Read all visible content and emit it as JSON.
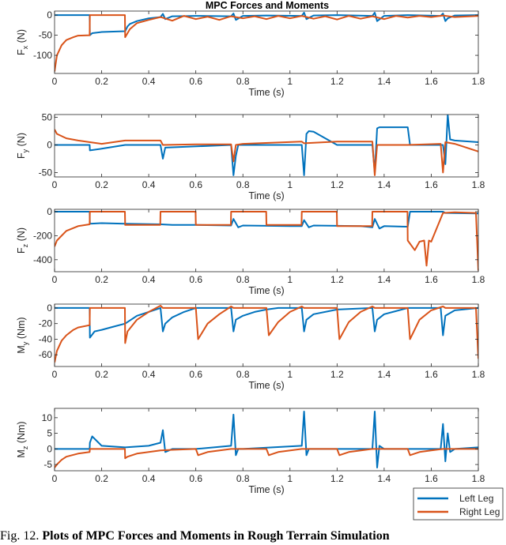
{
  "figure": {
    "title": "MPC Forces and Moments",
    "caption_prefix": "Fig. 12.",
    "caption_bold": "Plots of MPC Forces and Moments in Rough Terrain Simulation"
  },
  "colors": {
    "left_leg": "#0072BD",
    "right_leg": "#D95319"
  },
  "legend": {
    "placement": "bottom-right",
    "entries": [
      "Left Leg",
      "Right Leg"
    ]
  },
  "chart_data": [
    {
      "type": "line",
      "ylabel_main": "F",
      "ylabel_sub": "x",
      "ylabel_unit": " (N)",
      "xlabel": "Time (s)",
      "xlim": [
        0,
        1.8
      ],
      "ylim": [
        -145,
        10
      ],
      "xticks": [
        0,
        0.2,
        0.4,
        0.6,
        0.8,
        1,
        1.2,
        1.4,
        1.6,
        1.8
      ],
      "xtick_labels": [
        "0",
        "0.2",
        "0.4",
        "0.6",
        "0.8",
        "1",
        "1.2",
        "1.4",
        "1.6",
        "1.8"
      ],
      "yticks": [
        -100,
        -50,
        0
      ],
      "ytick_labels": [
        "-100",
        "-50",
        "0"
      ],
      "series": [
        {
          "name": "Left Leg",
          "x": [
            0,
            0.149,
            0.15,
            0.16,
            0.2,
            0.25,
            0.3,
            0.31,
            0.32,
            0.35,
            0.4,
            0.45,
            0.46,
            0.47,
            0.5,
            0.6,
            0.75,
            0.76,
            0.77,
            0.8,
            0.9,
            1.05,
            1.06,
            1.07,
            1.1,
            1.2,
            1.35,
            1.36,
            1.37,
            1.4,
            1.5,
            1.64,
            1.65,
            1.66,
            1.67,
            1.7,
            1.8
          ],
          "y": [
            0,
            0,
            -50,
            -45,
            -42,
            -41,
            -40,
            -28,
            -22,
            -15,
            -8,
            -5,
            3,
            -10,
            -3,
            -2,
            -3,
            4,
            -12,
            -2,
            -1,
            -2,
            6,
            -10,
            -1,
            0,
            -2,
            6,
            -15,
            -2,
            0,
            -2,
            4,
            -15,
            -8,
            -1,
            0
          ]
        },
        {
          "name": "Right Leg",
          "x": [
            0,
            0.01,
            0.03,
            0.05,
            0.08,
            0.1,
            0.149,
            0.15,
            0.299,
            0.3,
            0.32,
            0.35,
            0.4,
            0.45,
            0.5,
            0.55,
            0.6,
            0.65,
            0.7,
            0.75,
            0.8,
            0.85,
            0.9,
            0.95,
            1,
            1.05,
            1.1,
            1.15,
            1.2,
            1.25,
            1.3,
            1.35,
            1.4,
            1.45,
            1.5,
            1.55,
            1.6,
            1.65,
            1.7,
            1.8
          ],
          "y": [
            -140,
            -100,
            -75,
            -62,
            -55,
            -51,
            -50,
            0,
            0,
            -55,
            -35,
            -20,
            -12,
            -5,
            -14,
            -2,
            -10,
            -4,
            -12,
            -3,
            -8,
            -3,
            -10,
            -2,
            -8,
            -2,
            -9,
            -3,
            -11,
            -2,
            -9,
            -3,
            -10,
            -2,
            -6,
            -2,
            -5,
            -1,
            -5,
            -2
          ]
        }
      ]
    },
    {
      "type": "line",
      "ylabel_main": "F",
      "ylabel_sub": "y",
      "ylabel_unit": " (N)",
      "xlabel": "Time (s)",
      "xlim": [
        0,
        1.8
      ],
      "ylim": [
        -58,
        55
      ],
      "xticks": [
        0,
        0.2,
        0.4,
        0.6,
        0.8,
        1,
        1.2,
        1.4,
        1.6,
        1.8
      ],
      "xtick_labels": [
        "0",
        "0.2",
        "0.4",
        "0.6",
        "0.8",
        "1",
        "1.2",
        "1.4",
        "1.6",
        "1.8"
      ],
      "yticks": [
        -50,
        0,
        50
      ],
      "ytick_labels": [
        "-50",
        "0",
        "50"
      ],
      "series": [
        {
          "name": "Left Leg",
          "x": [
            0,
            0.149,
            0.15,
            0.2,
            0.3,
            0.45,
            0.46,
            0.47,
            0.75,
            0.76,
            0.77,
            0.78,
            1.05,
            1.06,
            1.07,
            1.08,
            1.1,
            1.2,
            1.35,
            1.36,
            1.37,
            1.38,
            1.5,
            1.51,
            1.65,
            1.66,
            1.67,
            1.68,
            1.7,
            1.8
          ],
          "y": [
            0,
            0,
            -10,
            -7,
            0,
            0,
            -25,
            -5,
            0,
            -55,
            -20,
            0,
            0,
            -55,
            20,
            25,
            24,
            0,
            0,
            -50,
            30,
            32,
            32,
            0,
            0,
            -35,
            55,
            10,
            8,
            5
          ]
        },
        {
          "name": "Right Leg",
          "x": [
            0,
            0.01,
            0.05,
            0.1,
            0.15,
            0.2,
            0.3,
            0.45,
            0.46,
            0.6,
            0.75,
            0.76,
            0.77,
            0.8,
            1.05,
            1.06,
            1.2,
            1.35,
            1.36,
            1.37,
            1.5,
            1.64,
            1.65,
            1.66,
            1.7,
            1.8
          ],
          "y": [
            28,
            20,
            12,
            8,
            5,
            2,
            8,
            8,
            0,
            1,
            1,
            -30,
            0,
            2,
            6,
            3,
            6,
            6,
            -55,
            0,
            0,
            2,
            -50,
            5,
            2,
            -12
          ]
        }
      ]
    },
    {
      "type": "line",
      "ylabel_main": "F",
      "ylabel_sub": "z",
      "ylabel_unit": " (N)",
      "xlabel": "Time (s)",
      "xlim": [
        0,
        1.8
      ],
      "ylim": [
        -500,
        20
      ],
      "xticks": [
        0,
        0.2,
        0.4,
        0.6,
        0.8,
        1,
        1.2,
        1.4,
        1.6,
        1.8
      ],
      "xtick_labels": [
        "0",
        "0.2",
        "0.4",
        "0.6",
        "0.8",
        "1",
        "1.2",
        "1.4",
        "1.6",
        "1.8"
      ],
      "yticks": [
        -400,
        -200,
        0
      ],
      "ytick_labels": [
        "-400",
        "-200",
        "0"
      ],
      "series": [
        {
          "name": "Left Leg",
          "x": [
            0,
            0.149,
            0.15,
            0.2,
            0.3,
            0.45,
            0.5,
            0.6,
            0.75,
            0.76,
            0.78,
            0.8,
            1,
            1.05,
            1.06,
            1.08,
            1.1,
            1.3,
            1.35,
            1.36,
            1.38,
            1.4,
            1.5,
            1.51,
            1.65,
            1.66,
            1.8
          ],
          "y": [
            0,
            0,
            -100,
            -95,
            -100,
            -105,
            -110,
            -110,
            -115,
            -60,
            -130,
            -115,
            -120,
            -120,
            -70,
            -130,
            -115,
            -120,
            -130,
            -60,
            -140,
            -120,
            -125,
            0,
            0,
            -10,
            -15
          ]
        },
        {
          "name": "Right Leg",
          "x": [
            0,
            0.01,
            0.05,
            0.1,
            0.149,
            0.15,
            0.299,
            0.3,
            0.449,
            0.45,
            0.599,
            0.6,
            0.749,
            0.75,
            0.899,
            0.9,
            1.049,
            1.05,
            1.199,
            1.2,
            1.349,
            1.35,
            1.499,
            1.5,
            1.53,
            1.55,
            1.57,
            1.58,
            1.59,
            1.6,
            1.65,
            1.7,
            1.79,
            1.8
          ],
          "y": [
            -290,
            -240,
            -160,
            -120,
            -105,
            0,
            0,
            -110,
            -110,
            0,
            0,
            -110,
            -110,
            0,
            0,
            -110,
            -110,
            0,
            0,
            -120,
            -120,
            0,
            0,
            -240,
            -320,
            -250,
            -240,
            -450,
            -240,
            -250,
            -10,
            -5,
            -10,
            -490
          ]
        }
      ]
    },
    {
      "type": "line",
      "ylabel_main": "M",
      "ylabel_sub": "y",
      "ylabel_unit": " (Nm)",
      "xlabel": "Time (s)",
      "xlim": [
        0,
        1.8
      ],
      "ylim": [
        -75,
        5
      ],
      "xticks": [
        0,
        0.2,
        0.4,
        0.6,
        0.8,
        1,
        1.2,
        1.4,
        1.6,
        1.8
      ],
      "xtick_labels": [
        "0",
        "0.2",
        "0.4",
        "0.6",
        "0.8",
        "1",
        "1.2",
        "1.4",
        "1.6",
        "1.8"
      ],
      "yticks": [
        -60,
        -40,
        -20,
        0
      ],
      "ytick_labels": [
        "-60",
        "-40",
        "-20",
        "0"
      ],
      "series": [
        {
          "name": "Left Leg",
          "x": [
            0,
            0.149,
            0.15,
            0.17,
            0.2,
            0.25,
            0.3,
            0.35,
            0.4,
            0.45,
            0.46,
            0.47,
            0.5,
            0.55,
            0.6,
            0.65,
            0.7,
            0.75,
            0.76,
            0.77,
            0.8,
            0.85,
            0.9,
            0.95,
            1.05,
            1.06,
            1.07,
            1.1,
            1.2,
            1.35,
            1.36,
            1.37,
            1.4,
            1.45,
            1.5,
            1.55,
            1.64,
            1.65,
            1.66,
            1.7,
            1.8
          ],
          "y": [
            0,
            0,
            -38,
            -30,
            -28,
            -24,
            -20,
            -10,
            -5,
            0,
            -30,
            -20,
            -12,
            -5,
            0,
            0,
            0,
            0,
            -30,
            -15,
            -10,
            -5,
            -2,
            0,
            0,
            -30,
            -15,
            -8,
            -2,
            0,
            -30,
            -15,
            -8,
            -4,
            0,
            0,
            0,
            -35,
            -10,
            -3,
            0
          ]
        },
        {
          "name": "Right Leg",
          "x": [
            0,
            0.01,
            0.03,
            0.05,
            0.08,
            0.1,
            0.149,
            0.15,
            0.299,
            0.3,
            0.31,
            0.35,
            0.4,
            0.45,
            0.46,
            0.6,
            0.61,
            0.65,
            0.7,
            0.75,
            0.76,
            0.9,
            0.91,
            0.95,
            1.0,
            1.05,
            1.06,
            1.2,
            1.21,
            1.25,
            1.3,
            1.35,
            1.36,
            1.5,
            1.51,
            1.55,
            1.6,
            1.65,
            1.66,
            1.79,
            1.8
          ],
          "y": [
            -70,
            -55,
            -42,
            -35,
            -28,
            -25,
            -22,
            0,
            0,
            -45,
            -30,
            -15,
            -5,
            3,
            0,
            0,
            -40,
            -20,
            -8,
            2,
            0,
            0,
            -35,
            -18,
            -5,
            2,
            0,
            0,
            -40,
            -18,
            -5,
            2,
            0,
            0,
            -40,
            -15,
            -3,
            2,
            0,
            0,
            -65
          ]
        }
      ]
    },
    {
      "type": "line",
      "ylabel_main": "M",
      "ylabel_sub": "z",
      "ylabel_unit": " (Nm)",
      "xlabel": "Time (s)",
      "xlim": [
        0,
        1.8
      ],
      "ylim": [
        -7,
        13
      ],
      "xticks": [
        0,
        0.2,
        0.4,
        0.6,
        0.8,
        1,
        1.2,
        1.4,
        1.6,
        1.8
      ],
      "xtick_labels": [
        "0",
        "0.2",
        "0.4",
        "0.6",
        "0.8",
        "1",
        "1.2",
        "1.4",
        "1.6",
        "1.8"
      ],
      "yticks": [
        -5,
        0,
        5,
        10
      ],
      "ytick_labels": [
        "-5",
        "0",
        "5",
        "10"
      ],
      "series": [
        {
          "name": "Left Leg",
          "x": [
            0,
            0.149,
            0.15,
            0.16,
            0.2,
            0.3,
            0.4,
            0.45,
            0.46,
            0.47,
            0.5,
            0.6,
            0.75,
            0.76,
            0.77,
            0.78,
            0.8,
            1.05,
            1.06,
            1.07,
            1.08,
            1.1,
            1.35,
            1.36,
            1.37,
            1.38,
            1.4,
            1.5,
            1.64,
            1.65,
            1.66,
            1.67,
            1.68,
            1.7,
            1.8
          ],
          "y": [
            0,
            0,
            2,
            4,
            1,
            0.5,
            1,
            2,
            6,
            -1,
            0,
            0,
            1,
            11,
            -2,
            0,
            0,
            1,
            12,
            -2,
            0,
            0,
            0,
            12,
            -6,
            1,
            0,
            0,
            0,
            8,
            -4,
            5,
            -1,
            0,
            0.5
          ]
        },
        {
          "name": "Right Leg",
          "x": [
            0,
            0.01,
            0.03,
            0.05,
            0.1,
            0.149,
            0.15,
            0.299,
            0.3,
            0.31,
            0.35,
            0.4,
            0.45,
            0.5,
            0.6,
            0.61,
            0.65,
            0.75,
            0.9,
            0.91,
            0.95,
            1.05,
            1.2,
            1.21,
            1.25,
            1.35,
            1.5,
            1.51,
            1.55,
            1.6,
            1.65,
            1.7,
            1.8
          ],
          "y": [
            -6,
            -5,
            -3.5,
            -2.5,
            -1.5,
            -1,
            0,
            0,
            -3,
            -2.5,
            -1.5,
            -1,
            -0.5,
            -0.3,
            0,
            -2,
            -1,
            0,
            0,
            -2,
            -1,
            0,
            0,
            -2,
            -1,
            0,
            0,
            -2,
            -1,
            -0.5,
            0,
            0,
            0
          ]
        }
      ]
    }
  ]
}
